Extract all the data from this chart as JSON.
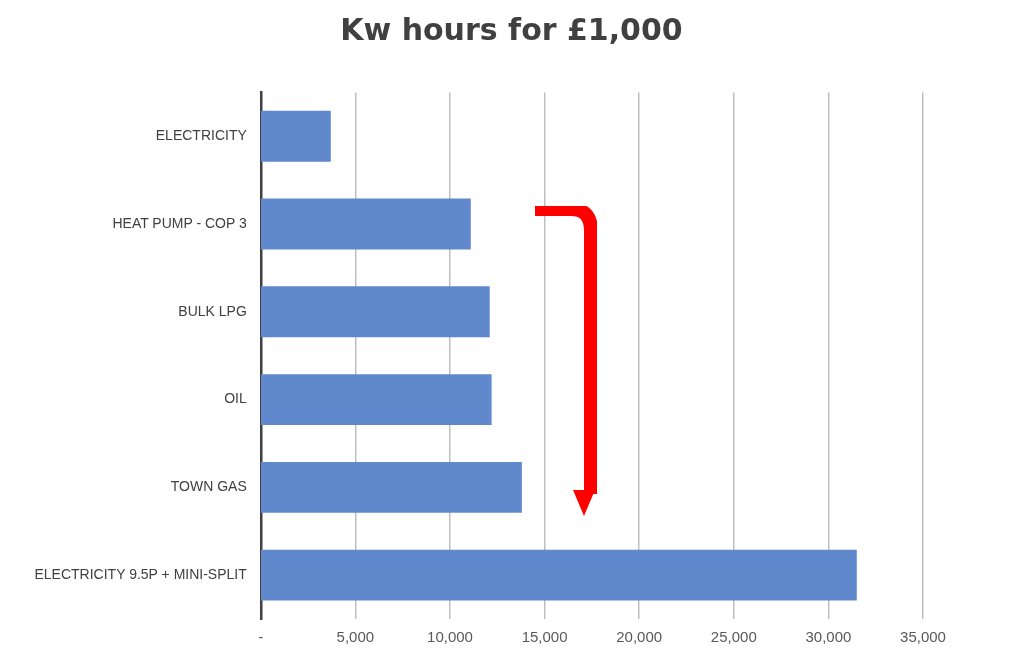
{
  "chart_data": {
    "type": "bar",
    "orientation": "horizontal",
    "title": "Kw hours for £1,000",
    "categories": [
      "ELECTRICITY",
      "HEAT PUMP - COP 3",
      "BULK LPG",
      "OIL",
      "TOWN GAS",
      "ELECTRICITY 9.5P + MINI-SPLIT"
    ],
    "values": [
      3700,
      11100,
      12100,
      12200,
      13800,
      31500
    ],
    "color": "#6089cd",
    "xlim": [
      0,
      35000
    ],
    "xticks": [
      {
        "value": 0,
        "label": "-"
      },
      {
        "value": 5000,
        "label": "5,000"
      },
      {
        "value": 10000,
        "label": "10,000"
      },
      {
        "value": 15000,
        "label": "15,000"
      },
      {
        "value": 20000,
        "label": "20,000"
      },
      {
        "value": 25000,
        "label": "25,000"
      },
      {
        "value": 30000,
        "label": "30,000"
      },
      {
        "value": 35000,
        "label": "35,000"
      }
    ],
    "grid": "x",
    "legend": false
  }
}
